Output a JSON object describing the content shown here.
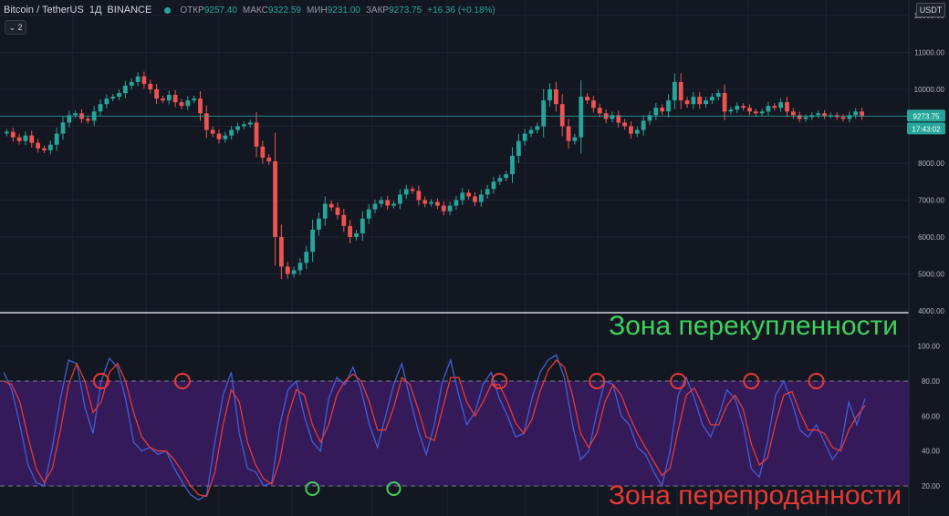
{
  "header": {
    "symbol": "Bitcoin / TetherUS",
    "interval": "1Д",
    "exchange": "BINANCE",
    "open_label": "ОТКР",
    "open_value": "9257.40",
    "high_label": "МАКС",
    "high_value": "9322.59",
    "low_label": "МИН",
    "low_value": "9231.00",
    "close_label": "ЗАКР",
    "close_value": "9273.75",
    "change": "+16.36 (+0.18%)"
  },
  "indicator_button": "⌄ 2",
  "currency_button": "USDT",
  "price_tag": "9273.75",
  "countdown_tag": "17:43:02",
  "overbought_label": "Зона перекупленности",
  "oversold_label": "Зона перепроданности",
  "colors": {
    "background": "#131722",
    "up": "#26a69a",
    "down": "#ef5350",
    "k_line": "#3f5fd8",
    "d_line": "#e53935",
    "band": "#3b1b63",
    "overbought_text": "#3ed15a",
    "oversold_text": "#e53935"
  },
  "chart_data": [
    {
      "type": "candlestick",
      "title": "",
      "xlabel": "",
      "ylabel": "",
      "ylim": [
        4000,
        12000
      ],
      "y_ticks": [
        "4000.00",
        "5000.00",
        "6000.00",
        "7000.00",
        "8000.00",
        "9000.00",
        "10000.00",
        "11000.00",
        "12000.00"
      ],
      "y_tick_values": [
        4000,
        5000,
        6000,
        7000,
        8000,
        9000,
        10000,
        11000,
        12000
      ],
      "last_price": 9273.75,
      "grid": true,
      "closes": [
        8850,
        8700,
        8600,
        8750,
        8550,
        8400,
        8350,
        8500,
        8800,
        9100,
        9300,
        9350,
        9200,
        9150,
        9400,
        9600,
        9750,
        9800,
        9900,
        10100,
        10200,
        10350,
        10150,
        10000,
        9750,
        9700,
        9850,
        9650,
        9550,
        9700,
        9750,
        9350,
        8900,
        8800,
        8650,
        8750,
        8900,
        9000,
        9050,
        9100,
        8450,
        8150,
        8050,
        6000,
        5200,
        5000,
        5100,
        5300,
        5600,
        6200,
        6500,
        6900,
        6800,
        6600,
        6300,
        6000,
        6100,
        6500,
        6750,
        6900,
        7000,
        6850,
        6900,
        7150,
        7300,
        7250,
        7000,
        6900,
        6950,
        6850,
        6700,
        6850,
        7000,
        7200,
        7100,
        6950,
        7150,
        7300,
        7500,
        7600,
        7700,
        8200,
        8600,
        8800,
        8900,
        9000,
        9700,
        10000,
        9600,
        9000,
        8600,
        8700,
        9800,
        9700,
        9500,
        9350,
        9200,
        9300,
        9100,
        9000,
        8800,
        8900,
        9150,
        9300,
        9500,
        9400,
        9700,
        10200,
        9700,
        9600,
        9800,
        9600,
        9700,
        9800,
        9900,
        9400,
        9450,
        9550,
        9500,
        9400,
        9350,
        9400,
        9550,
        9500,
        9650,
        9400,
        9300,
        9200,
        9250,
        9300,
        9350,
        9280,
        9300,
        9250,
        9200,
        9300,
        9400,
        9273.75
      ]
    },
    {
      "type": "line",
      "title": "",
      "ylim": [
        10,
        110
      ],
      "y_ticks": [
        "20.00",
        "40.00",
        "60.00",
        "80.00",
        "100.00"
      ],
      "y_tick_values": [
        20,
        40,
        60,
        80,
        100
      ],
      "overbought": 80,
      "oversold": 20,
      "grid": true,
      "series": [
        {
          "values": [
            85,
            75,
            55,
            32,
            22,
            20,
            42,
            70,
            92,
            90,
            65,
            50,
            80,
            93,
            88,
            70,
            45,
            40,
            42,
            38,
            40,
            30,
            22,
            15,
            12,
            15,
            45,
            72,
            85,
            50,
            30,
            28,
            20,
            22,
            55,
            75,
            80,
            60,
            45,
            40,
            70,
            82,
            78,
            88,
            75,
            55,
            42,
            60,
            78,
            90,
            70,
            52,
            38,
            55,
            80,
            92,
            72,
            55,
            62,
            78,
            85,
            70,
            60,
            48,
            50,
            70,
            85,
            92,
            95,
            82,
            55,
            35,
            40,
            62,
            80,
            78,
            60,
            55,
            42,
            38,
            28,
            20,
            40,
            72,
            82,
            70,
            55,
            48,
            60,
            75,
            70,
            55,
            30,
            25,
            45,
            72,
            80,
            68,
            52,
            48,
            55,
            45,
            35,
            42,
            68,
            55,
            70
          ]
        },
        {
          "values": [
            80,
            78,
            68,
            48,
            30,
            22,
            30,
            52,
            78,
            90,
            80,
            62,
            68,
            85,
            90,
            80,
            62,
            48,
            42,
            40,
            40,
            35,
            28,
            20,
            15,
            14,
            28,
            55,
            75,
            68,
            45,
            32,
            24,
            21,
            35,
            60,
            75,
            72,
            55,
            45,
            55,
            72,
            80,
            84,
            80,
            68,
            52,
            52,
            65,
            82,
            78,
            64,
            48,
            46,
            64,
            82,
            82,
            68,
            60,
            68,
            78,
            78,
            68,
            56,
            50,
            58,
            74,
            86,
            92,
            88,
            72,
            50,
            42,
            50,
            68,
            78,
            72,
            60,
            50,
            42,
            34,
            26,
            30,
            52,
            72,
            76,
            66,
            55,
            55,
            66,
            72,
            64,
            44,
            32,
            36,
            56,
            72,
            74,
            62,
            52,
            52,
            50,
            42,
            40,
            52,
            60,
            66
          ]
        }
      ],
      "markers_overbought": [
        12,
        22,
        61,
        73,
        83,
        92,
        100,
        118
      ],
      "markers_oversold": [
        38,
        48
      ]
    }
  ]
}
